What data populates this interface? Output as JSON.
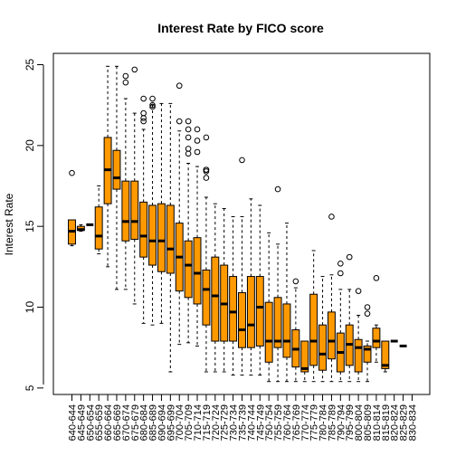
{
  "chart_data": {
    "type": "boxplot",
    "title": "Interest Rate by FICO score",
    "xlabel": "",
    "ylabel": "Interest Rate",
    "ylim": [
      4.6,
      25.7
    ],
    "yticks": [
      5,
      10,
      15,
      20,
      25
    ],
    "grid": false,
    "legend": "none",
    "box_color": "#FF9900",
    "categories": [
      "640-644",
      "645-649",
      "650-654",
      "655-659",
      "660-664",
      "665-669",
      "670-674",
      "675-679",
      "680-684",
      "685-689",
      "690-694",
      "695-699",
      "700-704",
      "705-709",
      "710-714",
      "715-719",
      "720-724",
      "725-729",
      "730-734",
      "735-739",
      "740-744",
      "745-749",
      "750-754",
      "755-759",
      "760-764",
      "765-769",
      "770-774",
      "775-779",
      "780-784",
      "785-789",
      "790-794",
      "795-799",
      "800-804",
      "805-809",
      "810-814",
      "815-819",
      "820-824",
      "825-829",
      "830-834"
    ],
    "boxes": [
      {
        "min": 13.8,
        "q1": 13.9,
        "median": 14.7,
        "q3": 15.4,
        "max": 15.4,
        "outliers": [
          18.3
        ]
      },
      {
        "min": 14.7,
        "q1": 14.75,
        "median": 14.8,
        "q3": 15.0,
        "max": 15.1,
        "outliers": []
      },
      {
        "min": 15.1,
        "q1": 15.1,
        "median": 15.1,
        "q3": 15.1,
        "max": 15.1,
        "outliers": []
      },
      {
        "min": 13.3,
        "q1": 13.6,
        "median": 14.4,
        "q3": 16.2,
        "max": 17.5,
        "outliers": []
      },
      {
        "min": 12.5,
        "q1": 16.4,
        "median": 18.5,
        "q3": 20.5,
        "max": 24.9,
        "outliers": []
      },
      {
        "min": 11.1,
        "q1": 17.3,
        "median": 18.0,
        "q3": 19.7,
        "max": 24.9,
        "outliers": []
      },
      {
        "min": 11.1,
        "q1": 14.1,
        "median": 15.3,
        "q3": 17.8,
        "max": 22.9,
        "outliers": [
          24.3,
          23.9
        ]
      },
      {
        "min": 10.2,
        "q1": 14.2,
        "median": 15.3,
        "q3": 17.8,
        "max": 22.0,
        "outliers": [
          24.7
        ]
      },
      {
        "min": 9.0,
        "q1": 13.1,
        "median": 14.4,
        "q3": 16.5,
        "max": 21.0,
        "outliers": [
          22.9,
          22.0,
          21.7,
          21.5
        ]
      },
      {
        "min": 8.9,
        "q1": 12.6,
        "median": 14.1,
        "q3": 16.3,
        "max": 22.5,
        "outliers": [
          22.9,
          22.5,
          22.4
        ]
      },
      {
        "min": 9.0,
        "q1": 12.2,
        "median": 14.1,
        "q3": 16.4,
        "max": 22.6,
        "outliers": []
      },
      {
        "min": 6.0,
        "q1": 12.1,
        "median": 13.6,
        "q3": 16.3,
        "max": 22.6,
        "outliers": []
      },
      {
        "min": 7.7,
        "q1": 11.0,
        "median": 13.1,
        "q3": 15.2,
        "max": 20.9,
        "outliers": [
          23.7,
          21.5
        ]
      },
      {
        "min": 7.8,
        "q1": 10.6,
        "median": 12.6,
        "q3": 14.1,
        "max": 18.9,
        "outliers": [
          21.5,
          21.0,
          20.5,
          19.8,
          19.5
        ]
      },
      {
        "min": 7.6,
        "q1": 10.2,
        "median": 12.1,
        "q3": 14.3,
        "max": 18.7,
        "outliers": [
          21.0,
          20.3,
          19.6
        ]
      },
      {
        "min": 6.0,
        "q1": 8.9,
        "median": 11.1,
        "q3": 12.3,
        "max": 16.8,
        "outliers": [
          20.5,
          18.5,
          18.5,
          18.4,
          18.0
        ]
      },
      {
        "min": 6.0,
        "q1": 7.9,
        "median": 10.7,
        "q3": 13.1,
        "max": 16.4,
        "outliers": []
      },
      {
        "min": 6.0,
        "q1": 7.9,
        "median": 10.2,
        "q3": 12.6,
        "max": 16.1,
        "outliers": []
      },
      {
        "min": 5.8,
        "q1": 7.9,
        "median": 9.7,
        "q3": 11.9,
        "max": 15.6,
        "outliers": []
      },
      {
        "min": 5.8,
        "q1": 7.5,
        "median": 8.6,
        "q3": 10.9,
        "max": 15.6,
        "outliers": [
          19.1
        ]
      },
      {
        "min": 5.8,
        "q1": 7.5,
        "median": 8.9,
        "q3": 11.9,
        "max": 16.7,
        "outliers": []
      },
      {
        "min": 5.8,
        "q1": 7.6,
        "median": 10.0,
        "q3": 11.9,
        "max": 16.3,
        "outliers": []
      },
      {
        "min": 5.4,
        "q1": 6.6,
        "median": 7.9,
        "q3": 10.3,
        "max": 14.6,
        "outliers": []
      },
      {
        "min": 5.4,
        "q1": 7.5,
        "median": 7.9,
        "q3": 10.6,
        "max": 13.9,
        "outliers": [
          17.3
        ]
      },
      {
        "min": 5.4,
        "q1": 6.9,
        "median": 7.9,
        "q3": 10.2,
        "max": 15.2,
        "outliers": []
      },
      {
        "min": 5.4,
        "q1": 6.3,
        "median": 7.4,
        "q3": 8.6,
        "max": 11.2,
        "outliers": [
          11.6
        ]
      },
      {
        "min": 5.4,
        "q1": 6.0,
        "median": 6.2,
        "q3": 7.9,
        "max": 7.9,
        "outliers": []
      },
      {
        "min": 5.4,
        "q1": 6.4,
        "median": 7.9,
        "q3": 10.8,
        "max": 13.5,
        "outliers": []
      },
      {
        "min": 5.4,
        "q1": 6.1,
        "median": 7.1,
        "q3": 8.9,
        "max": 11.9,
        "outliers": []
      },
      {
        "min": 5.4,
        "q1": 6.8,
        "median": 7.9,
        "q3": 9.7,
        "max": 12.0,
        "outliers": [
          15.6
        ]
      },
      {
        "min": 5.4,
        "q1": 6.0,
        "median": 7.2,
        "q3": 8.4,
        "max": 11.1,
        "outliers": [
          12.7,
          12.1
        ]
      },
      {
        "min": 5.4,
        "q1": 6.4,
        "median": 7.7,
        "q3": 8.9,
        "max": 11.1,
        "outliers": [
          13.1
        ]
      },
      {
        "min": 5.4,
        "q1": 6.0,
        "median": 7.5,
        "q3": 8.0,
        "max": 9.5,
        "outliers": [
          11.0
        ]
      },
      {
        "min": 5.4,
        "q1": 6.6,
        "median": 7.4,
        "q3": 7.6,
        "max": 7.9,
        "outliers": [
          10.0,
          9.6
        ]
      },
      {
        "min": 6.6,
        "q1": 7.5,
        "median": 7.9,
        "q3": 8.7,
        "max": 8.9,
        "outliers": [
          11.8
        ]
      },
      {
        "min": 6.0,
        "q1": 6.2,
        "median": 6.4,
        "q3": 7.9,
        "max": 7.9,
        "outliers": []
      },
      {
        "min": 7.9,
        "q1": 7.9,
        "median": 7.9,
        "q3": 7.9,
        "max": 7.9,
        "outliers": []
      },
      {
        "min": 7.6,
        "q1": 7.6,
        "median": 7.6,
        "q3": 7.6,
        "max": 7.6,
        "outliers": []
      },
      {
        "min": null,
        "q1": null,
        "median": null,
        "q3": null,
        "max": null,
        "outliers": []
      }
    ]
  }
}
